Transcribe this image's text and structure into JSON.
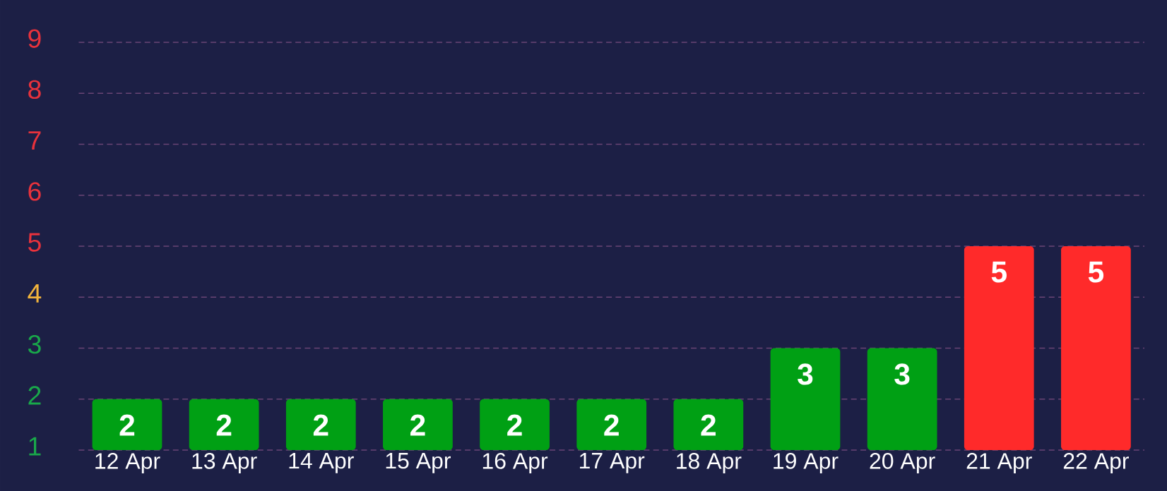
{
  "chart_data": {
    "type": "bar",
    "categories": [
      "12 Apr",
      "13 Apr",
      "14 Apr",
      "15 Apr",
      "16 Apr",
      "17 Apr",
      "18 Apr",
      "19 Apr",
      "20 Apr",
      "21 Apr",
      "22 Apr"
    ],
    "values": [
      2,
      2,
      2,
      2,
      2,
      2,
      2,
      3,
      3,
      5,
      5
    ],
    "data_labels": true,
    "colors": [
      "#00a014",
      "#00a014",
      "#00a014",
      "#00a014",
      "#00a014",
      "#00a014",
      "#00a014",
      "#00a014",
      "#00a014",
      "#ff2a2a",
      "#ff2a2a"
    ],
    "ylim": [
      1,
      9
    ],
    "yticks": [
      1,
      2,
      3,
      4,
      5,
      6,
      7,
      8,
      9
    ],
    "grid": "y"
  }
}
